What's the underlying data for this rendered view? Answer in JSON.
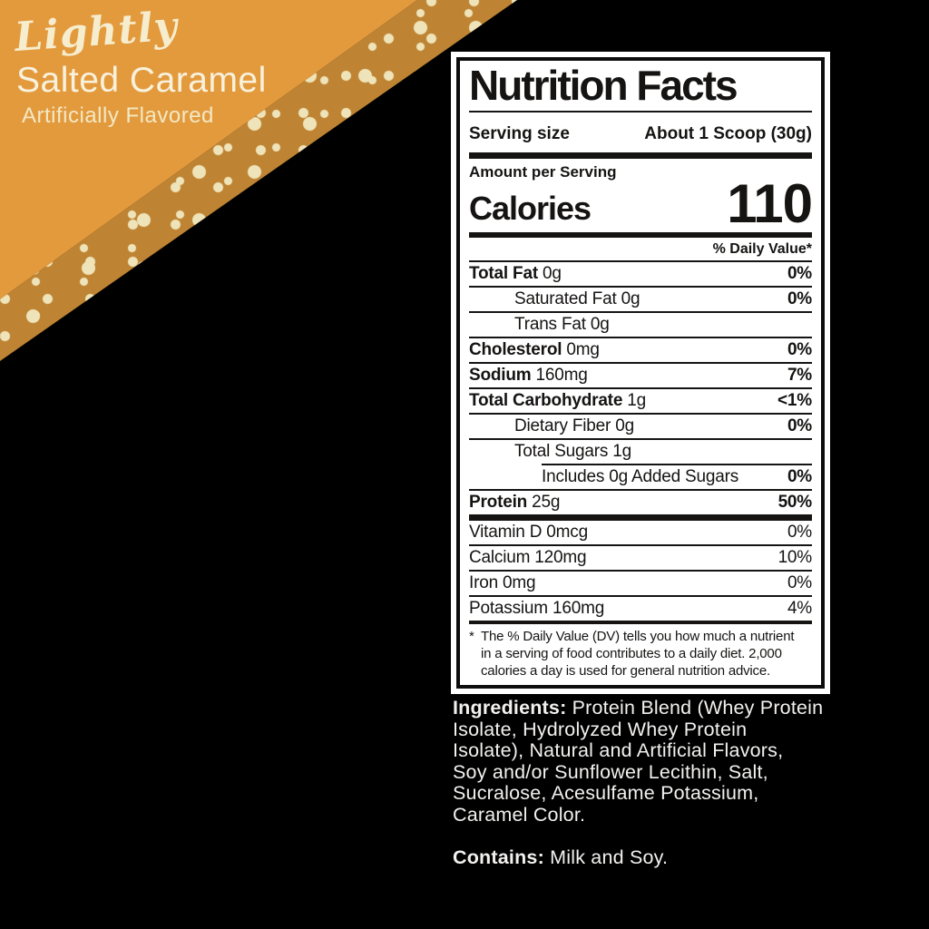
{
  "banner": {
    "script_line": "Lightly",
    "flavor_line": "Salted Caramel",
    "sub_line": "Artificially Flavored",
    "colors": {
      "main_orange": "#E39A3D",
      "band_orange": "#BE8433",
      "dot_cream": "#EFE3B9",
      "text_cream": "#F6EDCE"
    }
  },
  "label": {
    "title": "Nutrition Facts",
    "serving": {
      "label": "Serving size",
      "value": "About 1 Scoop (30g)"
    },
    "amount_per_serving": "Amount per Serving",
    "calories_label": "Calories",
    "calories_value": "110",
    "daily_value_header": "% Daily Value*",
    "rows": [
      {
        "name": "Total Fat",
        "amount": "0g",
        "pct": "0%",
        "indent": 0,
        "bold": true,
        "pct_bold": true
      },
      {
        "name": "Saturated Fat",
        "amount": "0g",
        "pct": "0%",
        "indent": 1,
        "bold": false,
        "pct_bold": true
      },
      {
        "name": "Trans Fat",
        "amount": "0g",
        "pct": "",
        "indent": 1,
        "bold": false,
        "pct_bold": false
      },
      {
        "name": "Cholesterol",
        "amount": "0mg",
        "pct": "0%",
        "indent": 0,
        "bold": true,
        "pct_bold": true
      },
      {
        "name": "Sodium",
        "amount": "160mg",
        "pct": "7%",
        "indent": 0,
        "bold": true,
        "pct_bold": true
      },
      {
        "name": "Total Carbohydrate",
        "amount": "1g",
        "pct": "<1%",
        "indent": 0,
        "bold": true,
        "pct_bold": true
      },
      {
        "name": "Dietary Fiber",
        "amount": "0g",
        "pct": "0%",
        "indent": 1,
        "bold": false,
        "pct_bold": true
      },
      {
        "name": "Total Sugars",
        "amount": "1g",
        "pct": "",
        "indent": 1,
        "bold": false,
        "pct_bold": false
      },
      {
        "name": "Includes 0g Added Sugars",
        "amount": "",
        "pct": "0%",
        "indent": 2,
        "bold": false,
        "pct_bold": true
      },
      {
        "name": "Protein",
        "amount": "25g",
        "pct": "50%",
        "indent": 0,
        "bold": true,
        "pct_bold": true
      }
    ],
    "micronutrients": [
      {
        "name": "Vitamin D",
        "amount": "0mcg",
        "pct": "0%"
      },
      {
        "name": "Calcium",
        "amount": "120mg",
        "pct": "10%"
      },
      {
        "name": "Iron",
        "amount": "0mg",
        "pct": "0%"
      },
      {
        "name": "Potassium",
        "amount": "160mg",
        "pct": "4%"
      }
    ],
    "footnote_star": "*",
    "footnote_lines": [
      "The % Daily Value (DV) tells you how much a nutrient",
      "in a serving of food contributes to a daily diet. 2,000",
      "calories a day is used for general nutrition advice."
    ]
  },
  "ingredients": {
    "label": "Ingredients:",
    "lines": [
      "Protein Blend (Whey Protein",
      "Isolate, Hydrolyzed Whey Protein",
      "Isolate), Natural and Artificial Flavors,",
      "Soy and/or Sunflower Lecithin, Salt,",
      "Sucralose, Acesulfame Potassium,",
      "Caramel Color."
    ]
  },
  "contains": {
    "label": "Contains:",
    "text": "Milk and Soy."
  }
}
